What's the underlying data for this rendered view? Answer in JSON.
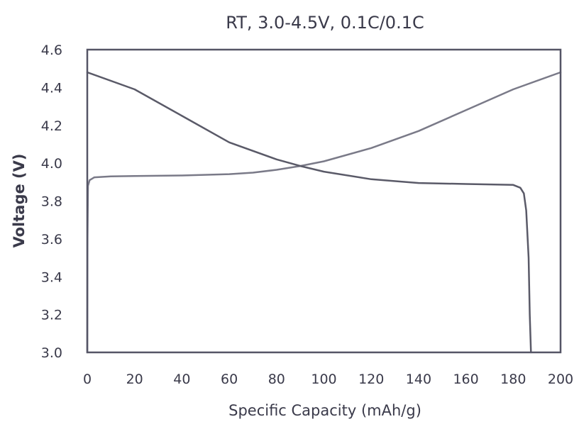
{
  "chart_data": {
    "type": "line",
    "title": "RT, 3.0-4.5V, 0.1C/0.1C",
    "xlabel": "Specific Capacity (mAh/g)",
    "ylabel": "Voltage (V)",
    "xlim": [
      0,
      200
    ],
    "ylim": [
      3.0,
      4.6
    ],
    "xticks": [
      "0",
      "20",
      "40",
      "60",
      "80",
      "100",
      "120",
      "140",
      "160",
      "180",
      "200"
    ],
    "yticks": [
      "3.0",
      "3.2",
      "3.4",
      "3.6",
      "3.8",
      "4.0",
      "4.2",
      "4.4",
      "4.6"
    ],
    "grid": false,
    "series": [
      {
        "color": "#7a7a88",
        "x": [
          0,
          0.1,
          0.3,
          1,
          3,
          10,
          20,
          40,
          60,
          70,
          80,
          90,
          100,
          120,
          140,
          160,
          180,
          200
        ],
        "y": [
          3.0,
          3.6,
          3.88,
          3.91,
          3.925,
          3.93,
          3.932,
          3.935,
          3.942,
          3.95,
          3.965,
          3.985,
          4.01,
          4.08,
          4.17,
          4.28,
          4.39,
          4.48
        ]
      },
      {
        "color": "#5a5a68",
        "x": [
          0,
          20,
          40,
          60,
          80,
          90,
          100,
          120,
          140,
          160,
          180,
          183,
          184.5,
          185.5,
          186.5,
          187,
          187.5
        ],
        "y": [
          4.48,
          4.39,
          4.25,
          4.11,
          4.02,
          3.985,
          3.955,
          3.915,
          3.895,
          3.89,
          3.885,
          3.87,
          3.84,
          3.75,
          3.5,
          3.2,
          3.0
        ]
      }
    ]
  }
}
